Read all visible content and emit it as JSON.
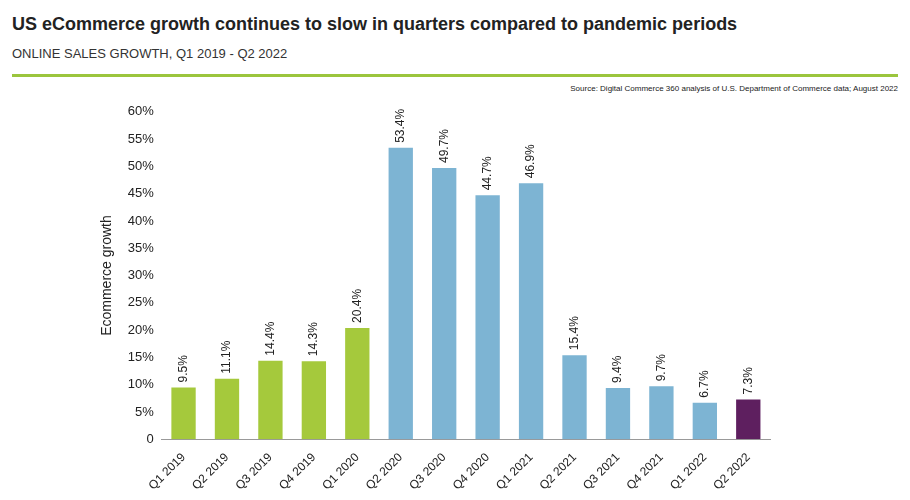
{
  "chart_data": {
    "type": "bar",
    "title": "US eCommerce growth continues to slow in quarters compared to pandemic periods",
    "subtitle": "ONLINE SALES GROWTH, Q1 2019 - Q2 2022",
    "source": "Source: Digital Commerce 360 analysis of U.S. Department of Commerce data; August 2022",
    "y_label": "Ecommerce growth",
    "categories": [
      "Q1 2019",
      "Q2 2019",
      "Q3 2019",
      "Q4 2019",
      "Q1 2020",
      "Q2 2020",
      "Q3 2020",
      "Q4 2020",
      "Q1 2021",
      "Q2 2021",
      "Q3 2021",
      "Q4 2021",
      "Q1 2022",
      "Q2 2022"
    ],
    "values": [
      9.5,
      11.1,
      14.4,
      14.3,
      20.4,
      53.4,
      49.7,
      44.7,
      46.9,
      15.4,
      9.4,
      9.7,
      6.7,
      7.3
    ],
    "value_labels": [
      "9.5%",
      "11.1%",
      "14.4%",
      "14.3%",
      "20.4%",
      "53.4%",
      "49.7%",
      "44.7%",
      "46.9%",
      "15.4%",
      "9.4%",
      "9.7%",
      "6.7%",
      "7.3%"
    ],
    "colors": [
      "#a5c93c",
      "#a5c93c",
      "#a5c93c",
      "#a5c93c",
      "#a5c93c",
      "#7db4d3",
      "#7db4d3",
      "#7db4d3",
      "#7db4d3",
      "#7db4d3",
      "#7db4d3",
      "#7db4d3",
      "#7db4d3",
      "#5e1f5f"
    ],
    "ylim": [
      0,
      60
    ],
    "yticks": [
      0,
      {
        "value": 5,
        "label": "5%"
      },
      {
        "value": 10,
        "label": "10%"
      },
      {
        "value": 15,
        "label": "15%"
      },
      {
        "value": 20,
        "label": "20%"
      },
      {
        "value": 25,
        "label": "25%"
      },
      {
        "value": 30,
        "label": "30%"
      },
      {
        "value": 35,
        "label": "35%"
      },
      {
        "value": 40,
        "label": "40%"
      },
      {
        "value": 45,
        "label": "45%"
      },
      {
        "value": 50,
        "label": "50%"
      },
      {
        "value": 55,
        "label": "55%"
      },
      {
        "value": 60,
        "label": "60%"
      }
    ],
    "grid": false,
    "data_labels": true
  }
}
